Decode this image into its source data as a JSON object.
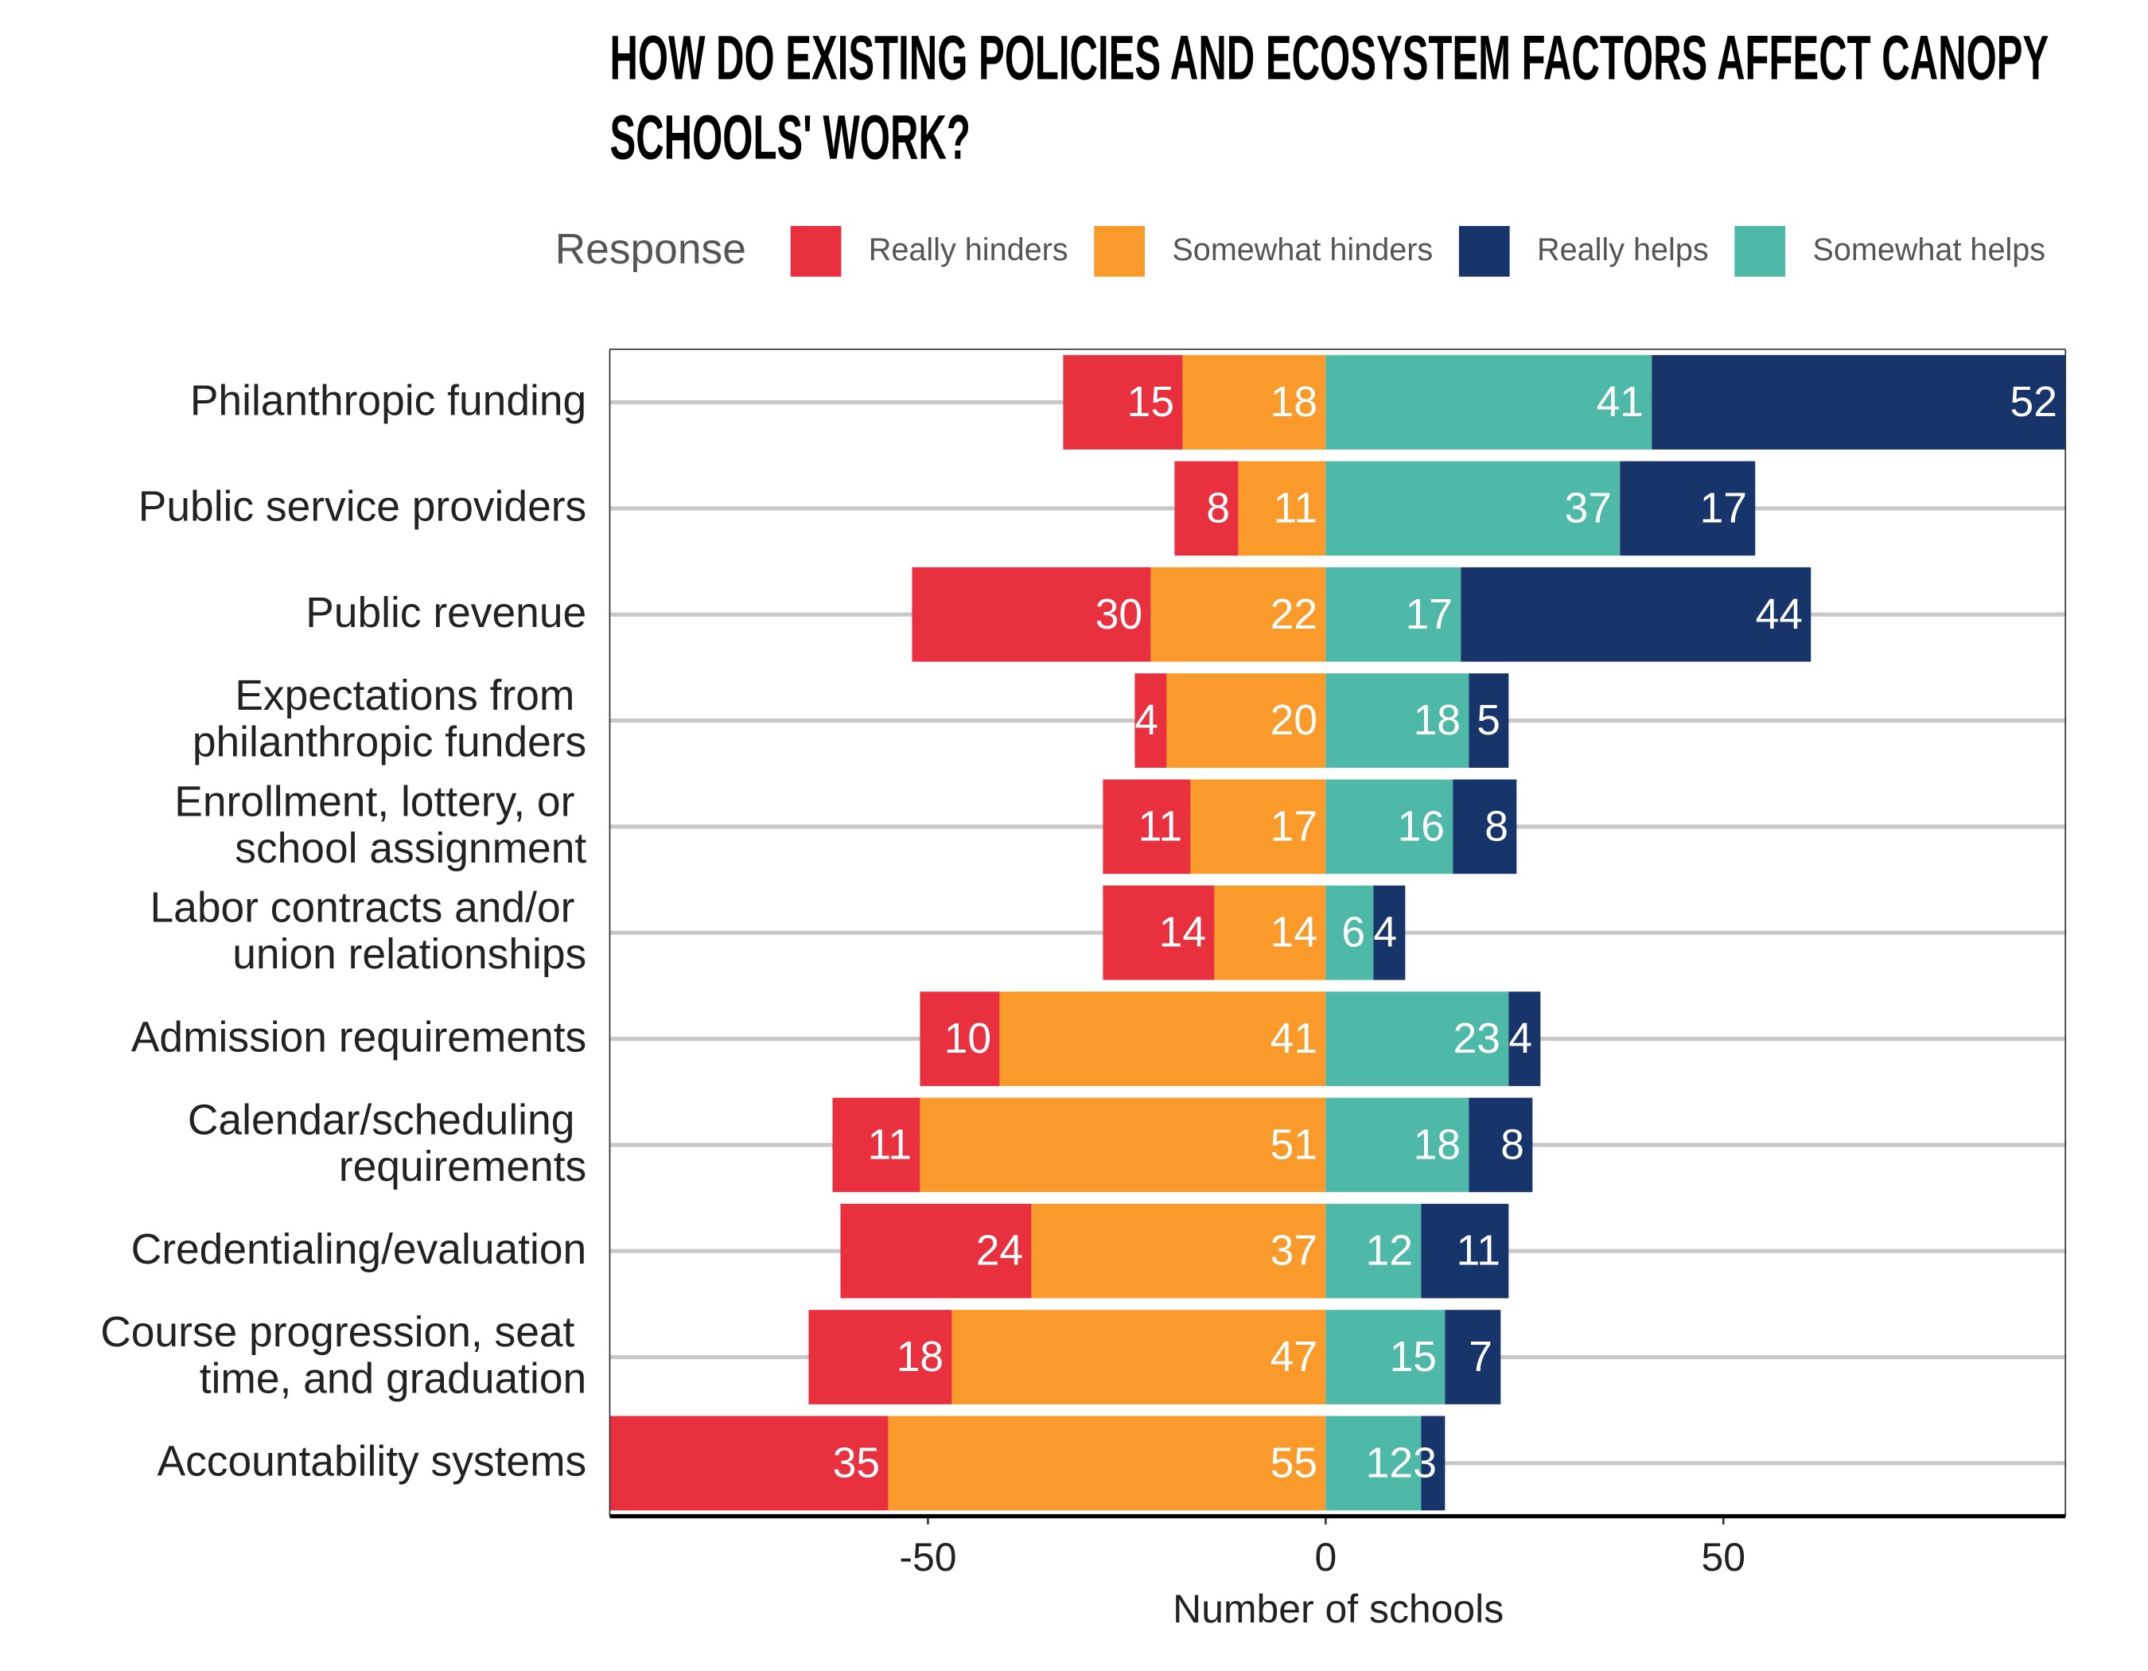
{
  "chart_data": {
    "type": "diverging_bar",
    "title": "HOW DO EXISTING POLICIES AND ECOSYSTEM FACTORS AFFECT CANOPY SCHOOLS' WORK?",
    "legend_title": "Response",
    "x_label": "Number of schools",
    "categories": [
      "Philanthropic funding",
      "Public service providers",
      "Public revenue",
      "Expectations from philanthropic funders",
      "Enrollment, lottery, or school assignment",
      "Labor contracts and/or union relationships",
      "Admission requirements",
      "Calendar/scheduling requirements",
      "Credentialing/evaluation",
      "Course progression, seat time, and graduation",
      "Accountability systems"
    ],
    "series": [
      {
        "name": "Really hinders",
        "color": "#e8303f",
        "side": "left",
        "values": [
          15,
          8,
          30,
          4,
          11,
          14,
          10,
          11,
          24,
          18,
          35
        ]
      },
      {
        "name": "Somewhat hinders",
        "color": "#f99a2b",
        "side": "left",
        "values": [
          18,
          11,
          22,
          20,
          17,
          14,
          41,
          51,
          37,
          47,
          55
        ]
      },
      {
        "name": "Really helps",
        "color": "#17356b",
        "side": "right",
        "values": [
          52,
          17,
          44,
          5,
          8,
          4,
          4,
          8,
          11,
          7,
          3
        ]
      },
      {
        "name": "Somewhat helps",
        "color": "#4db9a6",
        "side": "right",
        "values": [
          41,
          37,
          17,
          18,
          16,
          6,
          23,
          18,
          12,
          15,
          12
        ]
      }
    ],
    "xlim": [
      -90,
      93
    ],
    "xticks": [
      -50,
      0,
      50
    ],
    "grid": true
  }
}
